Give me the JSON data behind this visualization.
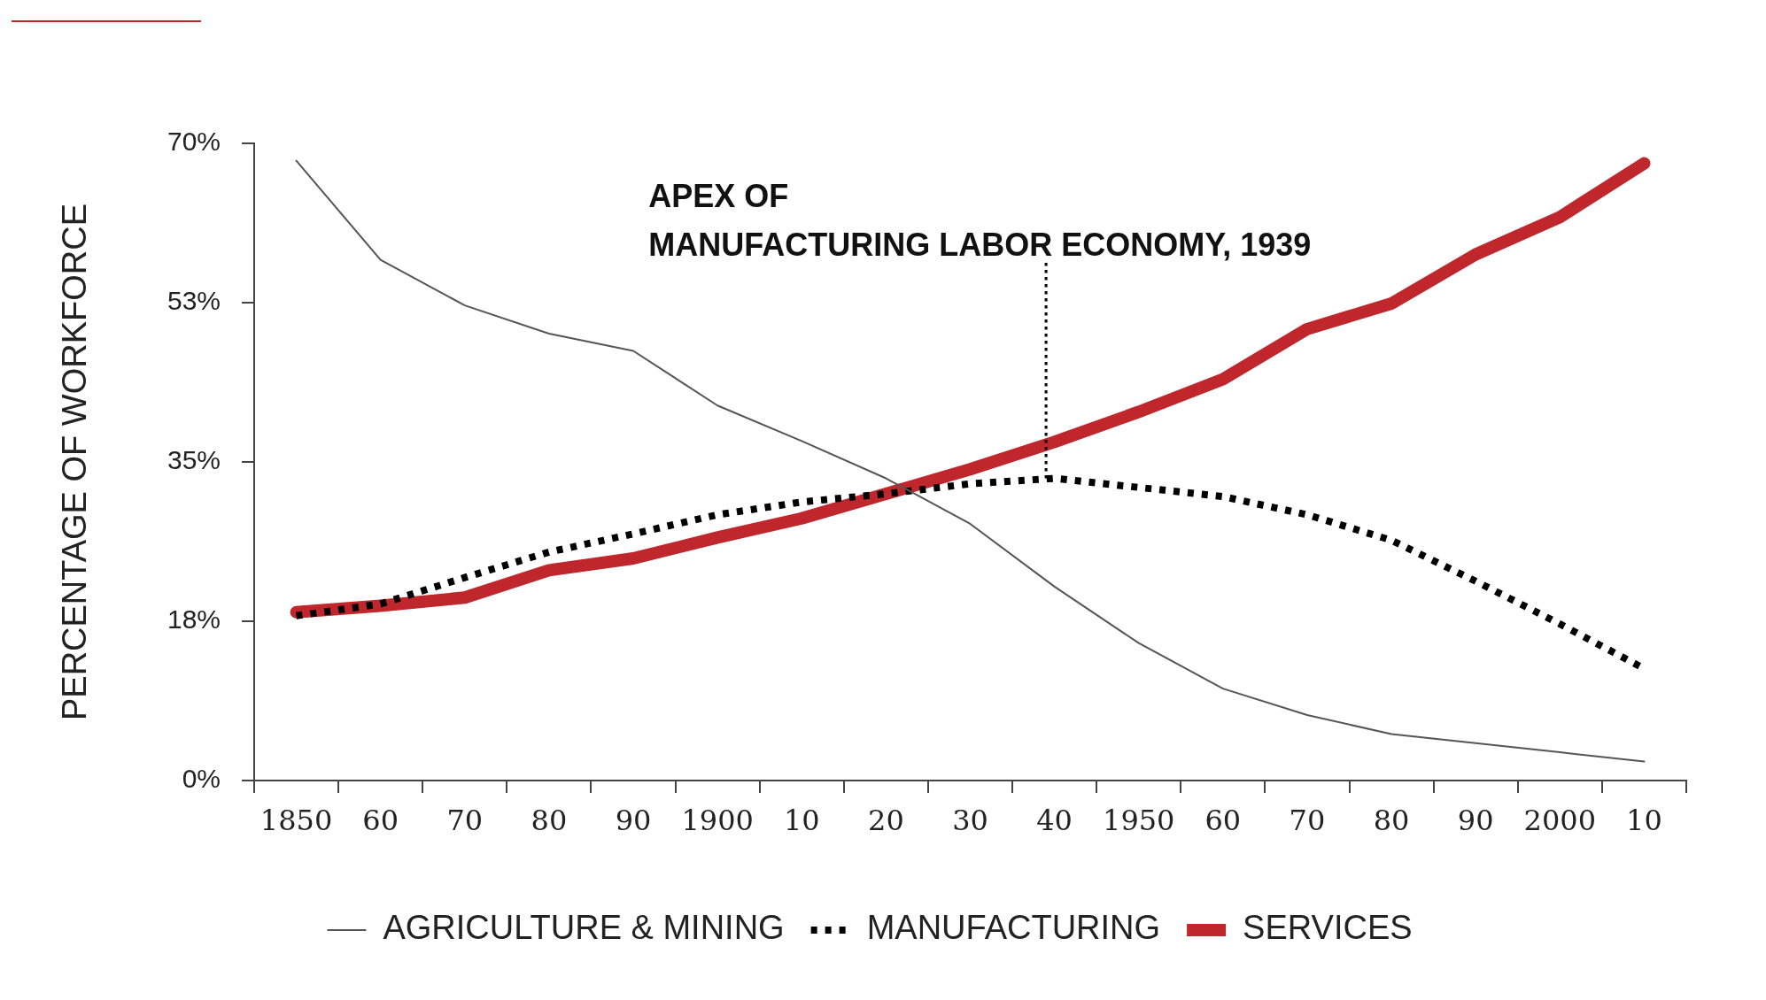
{
  "chart_data": {
    "type": "line",
    "ylabel": "PERCENTAGE OF WORKFORCE",
    "x": [
      1850,
      1860,
      1870,
      1880,
      1890,
      1900,
      1910,
      1920,
      1930,
      1940,
      1950,
      1960,
      1970,
      1980,
      1990,
      2000,
      2010
    ],
    "xlim": [
      1845,
      2015
    ],
    "xticks": [
      {
        "value": 1845,
        "label": null
      },
      {
        "value": 1850,
        "label": "1850"
      },
      {
        "value": 1855,
        "label": null
      },
      {
        "value": 1860,
        "label": "60"
      },
      {
        "value": 1865,
        "label": null
      },
      {
        "value": 1870,
        "label": "70"
      },
      {
        "value": 1875,
        "label": null
      },
      {
        "value": 1880,
        "label": "80"
      },
      {
        "value": 1885,
        "label": null
      },
      {
        "value": 1890,
        "label": "90"
      },
      {
        "value": 1895,
        "label": null
      },
      {
        "value": 1900,
        "label": "1900"
      },
      {
        "value": 1905,
        "label": null
      },
      {
        "value": 1910,
        "label": "10"
      },
      {
        "value": 1915,
        "label": null
      },
      {
        "value": 1920,
        "label": "20"
      },
      {
        "value": 1925,
        "label": null
      },
      {
        "value": 1930,
        "label": "30"
      },
      {
        "value": 1935,
        "label": null
      },
      {
        "value": 1940,
        "label": "40"
      },
      {
        "value": 1945,
        "label": null
      },
      {
        "value": 1950,
        "label": "1950"
      },
      {
        "value": 1955,
        "label": null
      },
      {
        "value": 1960,
        "label": "60"
      },
      {
        "value": 1965,
        "label": null
      },
      {
        "value": 1970,
        "label": "70"
      },
      {
        "value": 1975,
        "label": null
      },
      {
        "value": 1980,
        "label": "80"
      },
      {
        "value": 1985,
        "label": null
      },
      {
        "value": 1990,
        "label": "90"
      },
      {
        "value": 1995,
        "label": null
      },
      {
        "value": 2000,
        "label": "2000"
      },
      {
        "value": 2005,
        "label": null
      },
      {
        "value": 2010,
        "label": "10"
      },
      {
        "value": 2015,
        "label": null
      }
    ],
    "ylim": [
      0,
      70
    ],
    "yticks": [
      {
        "value": 0,
        "label": "0%"
      },
      {
        "value": 17.5,
        "label": "18%"
      },
      {
        "value": 35,
        "label": "35%"
      },
      {
        "value": 52.5,
        "label": "53%"
      },
      {
        "value": 70,
        "label": "70%"
      }
    ],
    "series": [
      {
        "name": "AGRICULTURE & MINING",
        "color": "#555555",
        "line_style": "solid",
        "values": [
          68.1,
          57.2,
          52.2,
          49.1,
          47.2,
          41.2,
          37.3,
          33.2,
          28.2,
          21.3,
          15.1,
          10.1,
          7.2,
          5.1,
          4.1,
          3.1,
          2.1
        ]
      },
      {
        "name": "MANUFACTURING",
        "color": "#000000",
        "line_style": "dotted",
        "values": [
          18.1,
          19.4,
          22.3,
          25.1,
          27.1,
          29.2,
          30.6,
          31.5,
          32.6,
          33.2,
          32.2,
          31.2,
          29.2,
          26.4,
          21.9,
          17.2,
          12.3
        ]
      },
      {
        "name": "SERVICES",
        "color": "#c0272d",
        "line_style": "solid",
        "values": [
          18.5,
          19.2,
          20.1,
          23.1,
          24.4,
          26.7,
          28.8,
          31.5,
          34.2,
          37.2,
          40.5,
          44.1,
          49.6,
          52.4,
          57.8,
          61.9,
          67.8
        ]
      }
    ],
    "ref_lines": [
      {
        "axis": "x",
        "value": 1939,
        "label": "APEX OF\nMANUFACTURING LABOR ECONOMY, 1939",
        "color": "#000000",
        "line_style": "dotted"
      }
    ],
    "grid": false,
    "legend": "bottom",
    "marker": "none"
  }
}
